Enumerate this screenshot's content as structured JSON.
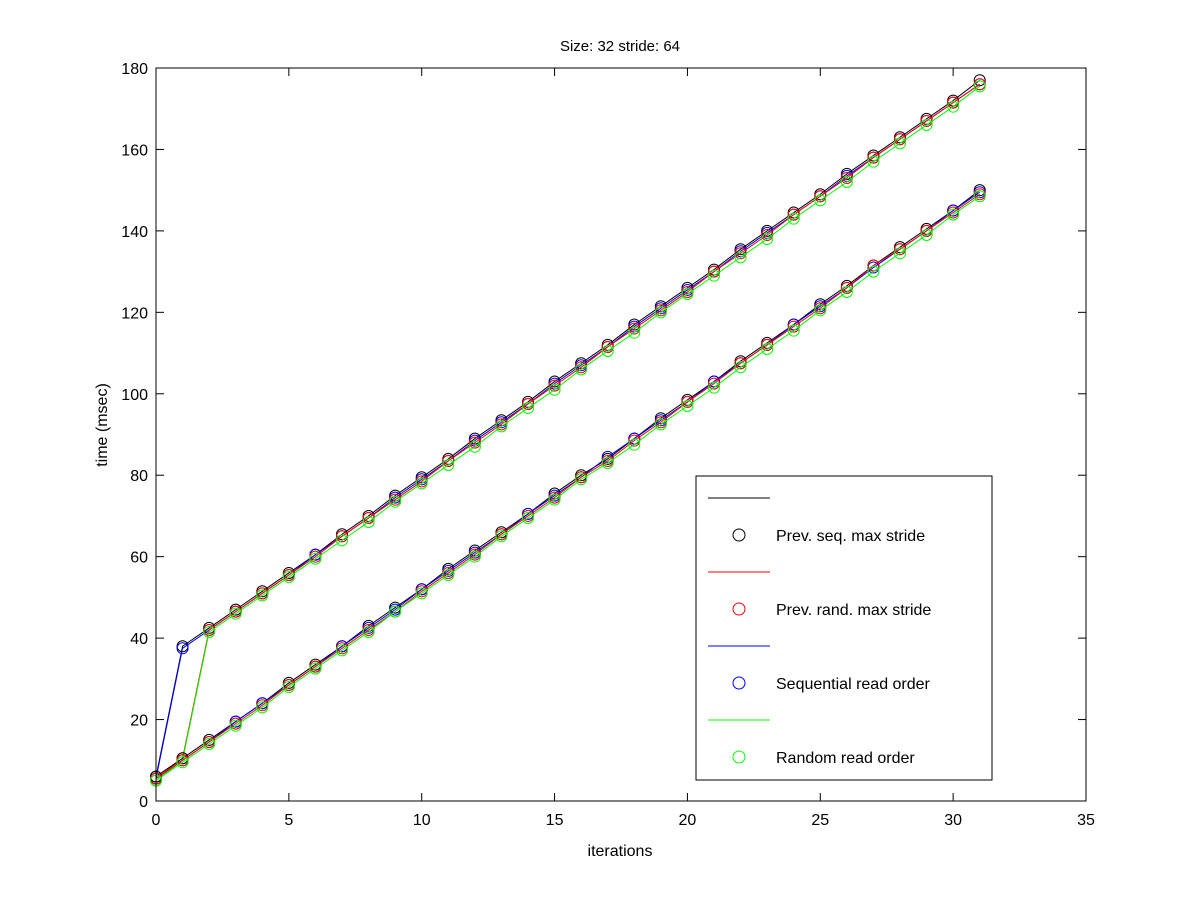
{
  "chart_data": {
    "type": "line",
    "title": "Size: 32 stride: 64",
    "xlabel": "iterations",
    "ylabel": "time (msec)",
    "xlim": [
      0,
      35
    ],
    "ylim": [
      0,
      180
    ],
    "xticks": [
      "0",
      "5",
      "10",
      "15",
      "20",
      "25",
      "30",
      "35"
    ],
    "yticks": [
      "0",
      "20",
      "40",
      "60",
      "80",
      "100",
      "120",
      "140",
      "160",
      "180"
    ],
    "grid": false,
    "legend_position": "bottom-right",
    "legend": [
      {
        "label": "",
        "color": "#000000",
        "kind": "line"
      },
      {
        "label": "Prev. seq. max stride",
        "color": "#000000",
        "kind": "marker"
      },
      {
        "label": "",
        "color": "#ff0000",
        "kind": "line"
      },
      {
        "label": "Prev. rand. max stride",
        "color": "#ff0000",
        "kind": "marker"
      },
      {
        "label": "",
        "color": "#0000ff",
        "kind": "line"
      },
      {
        "label": "Sequential read order",
        "color": "#0000ff",
        "kind": "marker"
      },
      {
        "label": "",
        "color": "#00ff00",
        "kind": "line"
      },
      {
        "label": "Random read order",
        "color": "#00ff00",
        "kind": "marker"
      }
    ],
    "series": [
      {
        "color": "#000000",
        "x": [
          0,
          1,
          2,
          3,
          4,
          5,
          6,
          7,
          8,
          9,
          10,
          11,
          12,
          13,
          14,
          15,
          16,
          17,
          18,
          19,
          20,
          21,
          22,
          23,
          24,
          25,
          26,
          27,
          28,
          29,
          30,
          31
        ],
        "values": [
          6,
          38,
          42.5,
          47,
          51.5,
          56,
          60.5,
          65.5,
          70,
          75,
          79.5,
          84,
          89,
          93.5,
          98,
          103,
          107.5,
          112,
          117,
          121.5,
          126,
          130.5,
          135.5,
          140,
          144.5,
          149,
          154,
          158.5,
          163,
          167.5,
          172,
          177
        ]
      },
      {
        "color": "#0000ff",
        "x": [
          0,
          1,
          2,
          3,
          4,
          5,
          6,
          7,
          8,
          9,
          10,
          11,
          12,
          13,
          14,
          15,
          16,
          17,
          18,
          19,
          20,
          21,
          22,
          23,
          24,
          25,
          26,
          27,
          28,
          29,
          30,
          31
        ],
        "values": [
          5.5,
          37.5,
          42,
          46.5,
          51,
          55.5,
          60.5,
          65,
          69.5,
          74.5,
          79,
          83.5,
          88.5,
          93,
          97.5,
          102.5,
          107,
          111.5,
          116.5,
          121,
          125.5,
          130,
          135,
          139.5,
          144,
          148.5,
          153.5,
          158,
          162.5,
          167,
          171.5,
          176
        ]
      },
      {
        "color": "#ff0000",
        "x": [
          0,
          1,
          2,
          3,
          4,
          5,
          6,
          7,
          8,
          9,
          10,
          11,
          12,
          13,
          14,
          15,
          16,
          17,
          18,
          19,
          20,
          21,
          22,
          23,
          24,
          25,
          26,
          27,
          28,
          29,
          30,
          31
        ],
        "values": [
          5.5,
          10.5,
          42,
          46.5,
          51,
          55.5,
          60,
          65,
          69.5,
          74,
          78.5,
          83.5,
          88,
          92.5,
          97.5,
          102,
          106.5,
          111.5,
          116,
          120.5,
          125,
          130,
          134.5,
          139,
          144,
          148.5,
          153,
          158,
          162.5,
          167,
          171.5,
          176
        ]
      },
      {
        "color": "#00ff00",
        "x": [
          0,
          1,
          2,
          3,
          4,
          5,
          6,
          7,
          8,
          9,
          10,
          11,
          12,
          13,
          14,
          15,
          16,
          17,
          18,
          19,
          20,
          21,
          22,
          23,
          24,
          25,
          26,
          27,
          28,
          29,
          30,
          31
        ],
        "values": [
          5,
          10,
          41.5,
          46,
          50.5,
          55,
          59.5,
          64,
          68.5,
          73.5,
          78,
          82.5,
          87,
          92,
          96.5,
          101,
          106,
          110.5,
          115,
          120,
          124.5,
          129,
          133.5,
          138,
          143,
          147.5,
          152,
          157,
          161.5,
          166,
          170.5,
          175.5
        ]
      },
      {
        "color": "#000000",
        "x": [
          0,
          1,
          2,
          3,
          4,
          5,
          6,
          7,
          8,
          9,
          10,
          11,
          12,
          13,
          14,
          15,
          16,
          17,
          18,
          19,
          20,
          21,
          22,
          23,
          24,
          25,
          26,
          27,
          28,
          29,
          30,
          31
        ],
        "values": [
          6,
          10.5,
          15,
          19.5,
          24,
          29,
          33.5,
          38,
          43,
          47.5,
          52,
          57,
          61.5,
          66,
          70.5,
          75.5,
          80,
          84,
          89,
          94,
          98.5,
          103,
          108,
          112.5,
          117,
          122,
          126.5,
          131.5,
          136,
          140.5,
          145,
          150
        ]
      },
      {
        "color": "#0000ff",
        "x": [
          0,
          1,
          2,
          3,
          4,
          5,
          6,
          7,
          8,
          9,
          10,
          11,
          12,
          13,
          14,
          15,
          16,
          17,
          18,
          19,
          20,
          21,
          22,
          23,
          24,
          25,
          26,
          27,
          28,
          29,
          30,
          31
        ],
        "values": [
          5.5,
          10,
          14.5,
          19.5,
          24,
          28.5,
          33,
          38,
          42.5,
          47,
          52,
          56.5,
          61,
          65.5,
          70.5,
          75,
          79.5,
          84.5,
          89,
          93.5,
          98,
          103,
          107.5,
          112,
          117,
          121.5,
          126,
          131,
          135.5,
          140,
          145,
          149.5
        ]
      },
      {
        "color": "#ff0000",
        "x": [
          0,
          1,
          2,
          3,
          4,
          5,
          6,
          7,
          8,
          9,
          10,
          11,
          12,
          13,
          14,
          15,
          16,
          17,
          18,
          19,
          20,
          21,
          22,
          23,
          24,
          25,
          26,
          27,
          28,
          29,
          30,
          31
        ],
        "values": [
          5.5,
          10,
          14.5,
          19,
          23.5,
          28.5,
          33,
          37.5,
          42,
          46.5,
          51.5,
          56,
          60.5,
          65.5,
          70,
          74.5,
          79.5,
          83.5,
          88.5,
          93,
          98,
          102.5,
          107.5,
          112,
          116.5,
          121,
          126,
          131.5,
          135.5,
          140,
          144.5,
          149
        ]
      },
      {
        "color": "#00ff00",
        "x": [
          0,
          1,
          2,
          3,
          4,
          5,
          6,
          7,
          8,
          9,
          10,
          11,
          12,
          13,
          14,
          15,
          16,
          17,
          18,
          19,
          20,
          21,
          22,
          23,
          24,
          25,
          26,
          27,
          28,
          29,
          30,
          31
        ],
        "values": [
          5,
          9.5,
          14,
          18.5,
          23,
          28,
          32.5,
          37,
          41.5,
          46.5,
          51,
          55.5,
          60,
          65,
          69.5,
          74,
          79,
          83,
          87.5,
          92.5,
          97,
          101.5,
          106.5,
          111,
          115.5,
          120.5,
          125,
          130,
          134.5,
          139,
          144,
          148.5
        ]
      }
    ]
  }
}
